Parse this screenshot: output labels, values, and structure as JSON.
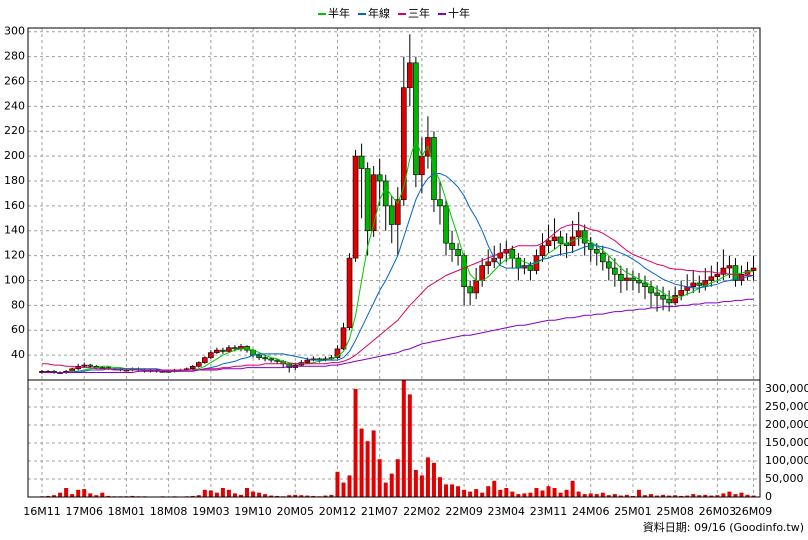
{
  "chart_data": [
    {
      "type": "candlestick",
      "legend": "top",
      "grid": true,
      "up_color": "#e00000",
      "down_color": "#00b400",
      "ylim": [
        20,
        303
      ],
      "yticks": [
        40,
        60,
        80,
        100,
        120,
        140,
        160,
        180,
        200,
        220,
        240,
        260,
        280,
        300
      ],
      "open": [
        26,
        27,
        27,
        26,
        26,
        27,
        29,
        31,
        32,
        31,
        30,
        30,
        29,
        29,
        28,
        28,
        29,
        28,
        27,
        28,
        27,
        27,
        27,
        28,
        28,
        29,
        31,
        34,
        38,
        42,
        44,
        43,
        46,
        45,
        47,
        44,
        40,
        38,
        37,
        36,
        35,
        33,
        30,
        32,
        34,
        36,
        37,
        36,
        37,
        38,
        45,
        62,
        118,
        200,
        190,
        140,
        185,
        180,
        160,
        145,
        165,
        255,
        275,
        185,
        200,
        215,
        165,
        160,
        130,
        125,
        120,
        95,
        90,
        100,
        112,
        115,
        118,
        122,
        125,
        118,
        110,
        112,
        108,
        120,
        128,
        132,
        135,
        130,
        128,
        135,
        140,
        130,
        125,
        122,
        115,
        110,
        105,
        100,
        102,
        100,
        98,
        95,
        90,
        88,
        85,
        82,
        88,
        92,
        95,
        98,
        96,
        100,
        103,
        105,
        110,
        112,
        100,
        105,
        108
      ],
      "high": [
        28,
        28,
        28,
        27,
        28,
        30,
        33,
        34,
        33,
        32,
        31,
        31,
        30,
        30,
        29,
        30,
        30,
        29,
        29,
        29,
        28,
        28,
        29,
        29,
        30,
        32,
        35,
        39,
        44,
        46,
        46,
        48,
        48,
        49,
        48,
        45,
        41,
        40,
        38,
        37,
        36,
        34,
        34,
        36,
        38,
        39,
        38,
        39,
        40,
        48,
        66,
        122,
        205,
        210,
        195,
        192,
        198,
        185,
        168,
        175,
        280,
        298,
        280,
        215,
        232,
        220,
        180,
        165,
        140,
        130,
        122,
        100,
        110,
        118,
        125,
        128,
        130,
        132,
        128,
        122,
        118,
        115,
        125,
        138,
        145,
        150,
        140,
        138,
        148,
        155,
        145,
        135,
        130,
        128,
        120,
        118,
        112,
        110,
        108,
        106,
        104,
        100,
        96,
        95,
        92,
        95,
        100,
        105,
        108,
        104,
        110,
        112,
        115,
        125,
        120,
        118,
        112,
        115,
        120
      ],
      "low": [
        25,
        26,
        25,
        25,
        25,
        26,
        28,
        30,
        30,
        29,
        29,
        28,
        28,
        27,
        27,
        27,
        27,
        26,
        26,
        26,
        26,
        26,
        26,
        27,
        27,
        28,
        30,
        33,
        37,
        41,
        41,
        42,
        43,
        43,
        42,
        38,
        36,
        35,
        34,
        33,
        30,
        26,
        28,
        31,
        33,
        35,
        34,
        35,
        36,
        37,
        44,
        60,
        115,
        150,
        120,
        135,
        160,
        140,
        130,
        120,
        160,
        240,
        175,
        170,
        190,
        155,
        145,
        120,
        115,
        112,
        80,
        80,
        85,
        95,
        105,
        110,
        112,
        115,
        110,
        100,
        105,
        100,
        105,
        115,
        122,
        125,
        120,
        118,
        122,
        128,
        120,
        115,
        112,
        108,
        100,
        95,
        90,
        92,
        92,
        90,
        85,
        78,
        75,
        76,
        75,
        80,
        84,
        88,
        90,
        90,
        92,
        95,
        98,
        100,
        102,
        95,
        96,
        100,
        100
      ],
      "close": [
        27,
        27,
        26,
        26,
        27,
        29,
        31,
        32,
        31,
        30,
        30,
        29,
        29,
        28,
        28,
        29,
        28,
        27,
        28,
        27,
        27,
        27,
        28,
        28,
        29,
        31,
        34,
        38,
        42,
        44,
        43,
        46,
        45,
        47,
        44,
        40,
        38,
        37,
        36,
        35,
        33,
        30,
        32,
        34,
        36,
        37,
        36,
        37,
        38,
        45,
        62,
        118,
        200,
        190,
        140,
        185,
        180,
        160,
        145,
        165,
        255,
        275,
        185,
        200,
        215,
        165,
        160,
        130,
        125,
        120,
        95,
        90,
        100,
        112,
        115,
        118,
        122,
        125,
        118,
        110,
        112,
        108,
        120,
        128,
        132,
        135,
        130,
        128,
        135,
        140,
        130,
        125,
        122,
        115,
        110,
        105,
        100,
        102,
        100,
        98,
        95,
        90,
        88,
        85,
        82,
        88,
        92,
        95,
        98,
        96,
        100,
        103,
        105,
        110,
        112,
        100,
        105,
        108,
        110
      ],
      "series": [
        {
          "name": "半年",
          "color": "#00c800",
          "values": [
            26,
            26,
            26,
            26,
            26,
            27,
            27,
            28,
            29,
            30,
            31,
            31,
            30,
            30,
            29,
            29,
            29,
            28,
            28,
            28,
            28,
            27,
            27,
            27,
            28,
            28,
            29,
            31,
            34,
            37,
            40,
            42,
            44,
            45,
            45,
            44,
            42,
            40,
            38,
            37,
            35,
            34,
            33,
            33,
            33,
            34,
            35,
            36,
            37,
            39,
            43,
            53,
            72,
            100,
            127,
            145,
            165,
            175,
            168,
            162,
            175,
            198,
            213,
            200,
            208,
            190,
            180,
            165,
            150,
            135,
            118,
            105,
            100,
            100,
            103,
            108,
            113,
            117,
            118,
            117,
            115,
            113,
            114,
            117,
            122,
            125,
            129,
            130,
            132,
            134,
            134,
            131,
            128,
            124,
            120,
            115,
            110,
            106,
            104,
            101,
            99,
            96,
            93,
            90,
            87,
            86,
            87,
            89,
            91,
            94,
            96,
            98,
            100,
            103,
            105,
            105,
            106,
            107,
            107
          ]
        },
        {
          "name": "年線",
          "color": "#0064c8",
          "values": [
            26,
            26,
            26,
            26,
            26,
            26,
            27,
            27,
            28,
            28,
            28,
            29,
            29,
            29,
            29,
            29,
            29,
            29,
            29,
            29,
            28,
            28,
            28,
            28,
            28,
            28,
            28,
            29,
            30,
            31,
            33,
            34,
            35,
            37,
            38,
            40,
            41,
            41,
            41,
            41,
            41,
            40,
            39,
            38,
            37,
            36,
            36,
            36,
            36,
            36,
            38,
            43,
            52,
            62,
            72,
            82,
            92,
            100,
            110,
            120,
            135,
            150,
            165,
            175,
            182,
            186,
            186,
            184,
            180,
            175,
            168,
            158,
            150,
            140,
            128,
            118,
            112,
            110,
            110,
            110,
            111,
            113,
            115,
            117,
            118,
            120,
            121,
            122,
            123,
            125,
            127,
            128,
            128,
            127,
            126,
            124,
            122,
            120,
            117,
            114,
            110,
            107,
            104,
            101,
            99,
            97,
            96,
            95,
            94,
            94,
            95,
            96,
            97,
            99,
            100,
            101,
            102,
            103,
            104
          ]
        },
        {
          "name": "三年",
          "color": "#dc0064",
          "values": [
            33,
            33,
            32,
            32,
            31,
            31,
            30,
            30,
            30,
            29,
            29,
            29,
            28,
            28,
            28,
            28,
            28,
            28,
            28,
            28,
            28,
            28,
            28,
            28,
            28,
            28,
            28,
            29,
            29,
            29,
            30,
            30,
            31,
            31,
            32,
            32,
            32,
            33,
            33,
            33,
            33,
            33,
            33,
            33,
            33,
            33,
            33,
            33,
            34,
            34,
            35,
            37,
            40,
            44,
            48,
            52,
            56,
            60,
            64,
            68,
            74,
            80,
            85,
            90,
            95,
            98,
            101,
            104,
            106,
            108,
            110,
            112,
            114,
            116,
            118,
            120,
            122,
            124,
            126,
            128,
            128,
            128,
            128,
            130,
            134,
            138,
            142,
            144,
            145,
            145,
            143,
            141,
            140,
            138,
            135,
            132,
            128,
            124,
            121,
            119,
            117,
            115,
            113,
            112,
            110,
            109,
            109,
            108,
            108,
            107,
            107,
            107,
            106,
            106,
            105,
            105,
            104,
            104,
            104
          ]
        },
        {
          "name": "十年",
          "color": "#8200c8",
          "values": [
            26,
            26,
            26,
            26,
            26,
            26,
            26,
            26,
            26,
            26,
            26,
            26,
            26,
            26,
            26,
            26,
            27,
            27,
            27,
            27,
            27,
            27,
            27,
            27,
            27,
            27,
            28,
            28,
            28,
            28,
            29,
            29,
            29,
            29,
            30,
            30,
            30,
            30,
            30,
            30,
            30,
            31,
            31,
            31,
            31,
            31,
            31,
            31,
            32,
            32,
            33,
            34,
            35,
            36,
            37,
            38,
            39,
            40,
            41,
            42,
            44,
            45,
            47,
            49,
            50,
            51,
            52,
            53,
            54,
            55,
            56,
            56,
            57,
            58,
            59,
            60,
            61,
            62,
            63,
            64,
            64,
            65,
            66,
            67,
            68,
            68,
            69,
            70,
            70,
            71,
            72,
            72,
            73,
            73,
            74,
            75,
            75,
            76,
            76,
            77,
            77,
            78,
            78,
            79,
            79,
            79,
            80,
            80,
            81,
            81,
            82,
            82,
            82,
            83,
            83,
            84,
            84,
            85,
            85
          ]
        }
      ]
    },
    {
      "type": "bar",
      "color": "#e00000",
      "grid": true,
      "ylim": [
        0,
        325000
      ],
      "yticks": [
        0,
        {
          "value": 50000,
          "label": "50,000"
        },
        {
          "value": 100000,
          "label": "100,000"
        },
        {
          "value": 150000,
          "label": "150,000"
        },
        {
          "value": 200000,
          "label": "200,000"
        },
        {
          "value": 250000,
          "label": "250,000"
        },
        {
          "value": 300000,
          "label": "300,000"
        }
      ],
      "categories": [
        "16M11",
        null,
        null,
        null,
        null,
        null,
        null,
        "17M06",
        null,
        null,
        null,
        null,
        null,
        null,
        "18M01",
        null,
        null,
        null,
        null,
        null,
        null,
        "18M08",
        null,
        null,
        null,
        null,
        null,
        null,
        "19M03",
        null,
        null,
        null,
        null,
        null,
        null,
        "19M10",
        null,
        null,
        null,
        null,
        null,
        null,
        "20M05",
        null,
        null,
        null,
        null,
        null,
        null,
        "20M12",
        null,
        null,
        null,
        null,
        null,
        null,
        "21M07",
        null,
        null,
        null,
        null,
        null,
        null,
        "22M02",
        null,
        null,
        null,
        null,
        null,
        null,
        "22M09",
        null,
        null,
        null,
        null,
        null,
        null,
        "23M04",
        null,
        null,
        null,
        null,
        null,
        null,
        "23M11",
        null,
        null,
        null,
        null,
        null,
        null,
        "24M06",
        null,
        null,
        null,
        null,
        null,
        null,
        "25M01",
        null,
        null,
        null,
        null,
        null,
        null,
        "25M08",
        null,
        null,
        null,
        null,
        null,
        null,
        "26M03",
        null,
        null,
        null,
        null,
        null,
        "26M09"
      ],
      "values": [
        2000,
        3000,
        5000,
        12000,
        25000,
        8000,
        20000,
        22000,
        10000,
        5000,
        12000,
        3000,
        2000,
        2000,
        2000,
        3000,
        2000,
        2000,
        1000,
        1000,
        2000,
        1000,
        2000,
        1000,
        2000,
        3000,
        5000,
        20000,
        18000,
        12000,
        25000,
        20000,
        10000,
        6000,
        25000,
        15000,
        12000,
        8000,
        4000,
        3000,
        2000,
        5000,
        6000,
        5000,
        4000,
        3000,
        2000,
        4000,
        6000,
        70000,
        40000,
        60000,
        300000,
        190000,
        155000,
        185000,
        105000,
        40000,
        65000,
        105000,
        325000,
        285000,
        75000,
        60000,
        110000,
        95000,
        55000,
        35000,
        35000,
        30000,
        20000,
        15000,
        22000,
        12000,
        30000,
        45000,
        20000,
        25000,
        15000,
        8000,
        10000,
        12000,
        25000,
        18000,
        30000,
        25000,
        12000,
        20000,
        45000,
        15000,
        8000,
        10000,
        8000,
        12000,
        5000,
        8000,
        4000,
        6000,
        3000,
        20000,
        5000,
        8000,
        4000,
        6000,
        4000,
        5000,
        3000,
        4000,
        8000,
        5000,
        6000,
        4000,
        5000,
        10000,
        15000,
        8000,
        12000,
        6000,
        4000
      ]
    }
  ],
  "footer": "資料日期: 09/16  (Goodinfo.tw)"
}
